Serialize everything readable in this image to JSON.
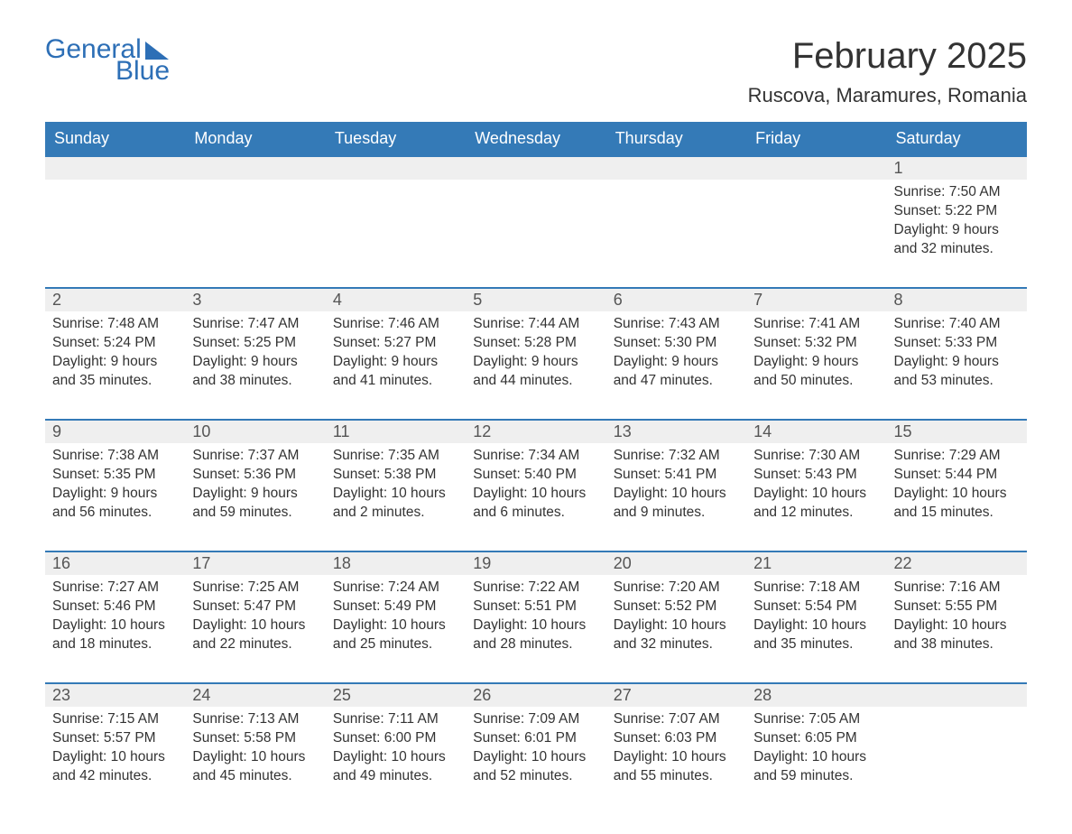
{
  "brand": {
    "word1": "General",
    "word2": "Blue"
  },
  "title": "February 2025",
  "location": "Ruscova, Maramures, Romania",
  "colors": {
    "header_bg": "#347ab7",
    "header_text": "#ffffff",
    "daynum_bg": "#efefef",
    "row_divider": "#347ab7",
    "text": "#333333",
    "logo": "#2d6fb6",
    "page_bg": "#ffffff"
  },
  "typography": {
    "title_fontsize": 40,
    "location_fontsize": 22,
    "header_fontsize": 18,
    "daynum_fontsize": 18,
    "body_fontsize": 15.5,
    "font_family": "Arial"
  },
  "layout": {
    "columns": 7,
    "rows": 5,
    "first_weekday_index": 6
  },
  "weekdays": [
    "Sunday",
    "Monday",
    "Tuesday",
    "Wednesday",
    "Thursday",
    "Friday",
    "Saturday"
  ],
  "labels": {
    "sunrise": "Sunrise:",
    "sunset": "Sunset:",
    "daylight": "Daylight:"
  },
  "days": [
    {
      "n": 1,
      "sunrise": "7:50 AM",
      "sunset": "5:22 PM",
      "daylight": "9 hours and 32 minutes."
    },
    {
      "n": 2,
      "sunrise": "7:48 AM",
      "sunset": "5:24 PM",
      "daylight": "9 hours and 35 minutes."
    },
    {
      "n": 3,
      "sunrise": "7:47 AM",
      "sunset": "5:25 PM",
      "daylight": "9 hours and 38 minutes."
    },
    {
      "n": 4,
      "sunrise": "7:46 AM",
      "sunset": "5:27 PM",
      "daylight": "9 hours and 41 minutes."
    },
    {
      "n": 5,
      "sunrise": "7:44 AM",
      "sunset": "5:28 PM",
      "daylight": "9 hours and 44 minutes."
    },
    {
      "n": 6,
      "sunrise": "7:43 AM",
      "sunset": "5:30 PM",
      "daylight": "9 hours and 47 minutes."
    },
    {
      "n": 7,
      "sunrise": "7:41 AM",
      "sunset": "5:32 PM",
      "daylight": "9 hours and 50 minutes."
    },
    {
      "n": 8,
      "sunrise": "7:40 AM",
      "sunset": "5:33 PM",
      "daylight": "9 hours and 53 minutes."
    },
    {
      "n": 9,
      "sunrise": "7:38 AM",
      "sunset": "5:35 PM",
      "daylight": "9 hours and 56 minutes."
    },
    {
      "n": 10,
      "sunrise": "7:37 AM",
      "sunset": "5:36 PM",
      "daylight": "9 hours and 59 minutes."
    },
    {
      "n": 11,
      "sunrise": "7:35 AM",
      "sunset": "5:38 PM",
      "daylight": "10 hours and 2 minutes."
    },
    {
      "n": 12,
      "sunrise": "7:34 AM",
      "sunset": "5:40 PM",
      "daylight": "10 hours and 6 minutes."
    },
    {
      "n": 13,
      "sunrise": "7:32 AM",
      "sunset": "5:41 PM",
      "daylight": "10 hours and 9 minutes."
    },
    {
      "n": 14,
      "sunrise": "7:30 AM",
      "sunset": "5:43 PM",
      "daylight": "10 hours and 12 minutes."
    },
    {
      "n": 15,
      "sunrise": "7:29 AM",
      "sunset": "5:44 PM",
      "daylight": "10 hours and 15 minutes."
    },
    {
      "n": 16,
      "sunrise": "7:27 AM",
      "sunset": "5:46 PM",
      "daylight": "10 hours and 18 minutes."
    },
    {
      "n": 17,
      "sunrise": "7:25 AM",
      "sunset": "5:47 PM",
      "daylight": "10 hours and 22 minutes."
    },
    {
      "n": 18,
      "sunrise": "7:24 AM",
      "sunset": "5:49 PM",
      "daylight": "10 hours and 25 minutes."
    },
    {
      "n": 19,
      "sunrise": "7:22 AM",
      "sunset": "5:51 PM",
      "daylight": "10 hours and 28 minutes."
    },
    {
      "n": 20,
      "sunrise": "7:20 AM",
      "sunset": "5:52 PM",
      "daylight": "10 hours and 32 minutes."
    },
    {
      "n": 21,
      "sunrise": "7:18 AM",
      "sunset": "5:54 PM",
      "daylight": "10 hours and 35 minutes."
    },
    {
      "n": 22,
      "sunrise": "7:16 AM",
      "sunset": "5:55 PM",
      "daylight": "10 hours and 38 minutes."
    },
    {
      "n": 23,
      "sunrise": "7:15 AM",
      "sunset": "5:57 PM",
      "daylight": "10 hours and 42 minutes."
    },
    {
      "n": 24,
      "sunrise": "7:13 AM",
      "sunset": "5:58 PM",
      "daylight": "10 hours and 45 minutes."
    },
    {
      "n": 25,
      "sunrise": "7:11 AM",
      "sunset": "6:00 PM",
      "daylight": "10 hours and 49 minutes."
    },
    {
      "n": 26,
      "sunrise": "7:09 AM",
      "sunset": "6:01 PM",
      "daylight": "10 hours and 52 minutes."
    },
    {
      "n": 27,
      "sunrise": "7:07 AM",
      "sunset": "6:03 PM",
      "daylight": "10 hours and 55 minutes."
    },
    {
      "n": 28,
      "sunrise": "7:05 AM",
      "sunset": "6:05 PM",
      "daylight": "10 hours and 59 minutes."
    }
  ]
}
